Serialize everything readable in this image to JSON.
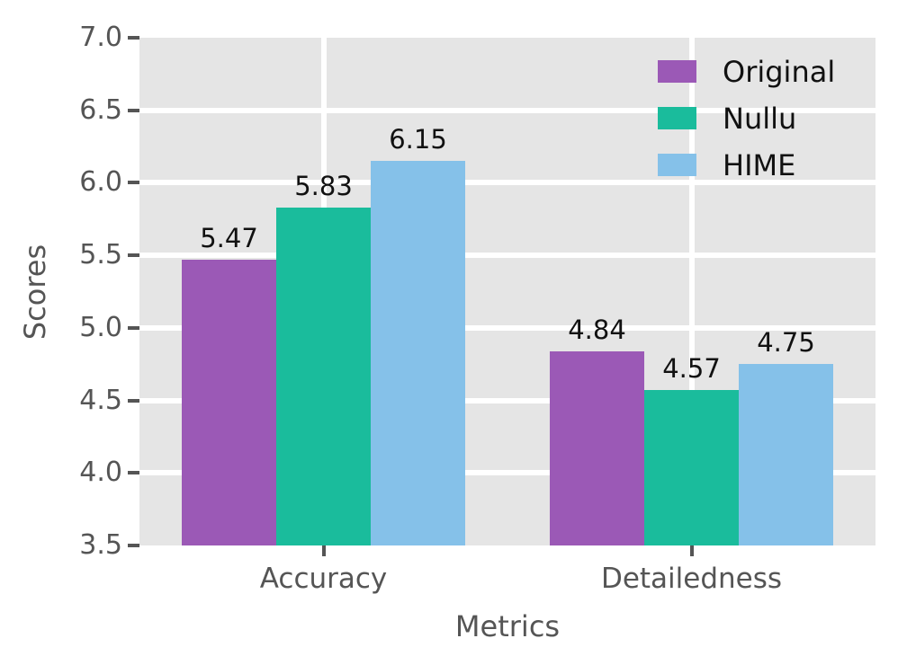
{
  "chart_data": {
    "type": "bar",
    "title": "",
    "xlabel": "Metrics",
    "ylabel": "Scores",
    "categories": [
      "Accuracy",
      "Detailedness"
    ],
    "series": [
      {
        "name": "Original",
        "color": "#9b59b6",
        "values": [
          5.47,
          4.84
        ]
      },
      {
        "name": "Nullu",
        "color": "#1abc9c",
        "values": [
          5.83,
          4.57
        ]
      },
      {
        "name": "HIME",
        "color": "#85c1e9",
        "values": [
          6.15,
          4.75
        ]
      }
    ],
    "value_labels": [
      [
        "5.47",
        "4.84"
      ],
      [
        "5.83",
        "4.57"
      ],
      [
        "6.15",
        "4.75"
      ]
    ],
    "ylim": [
      3.5,
      7.0
    ],
    "yticks": [
      3.5,
      4.0,
      4.5,
      5.0,
      5.5,
      6.0,
      6.5,
      7.0
    ],
    "ytick_labels": [
      "3.5",
      "4.0",
      "4.5",
      "5.0",
      "5.5",
      "6.0",
      "6.5",
      "7.0"
    ],
    "grid": true,
    "legend_position": "upper right"
  },
  "style": {
    "plot_bg": "#e5e5e5",
    "grid_color": "#ffffff",
    "tick_text_color": "#555555",
    "value_label_color": "#111111",
    "figure_bg": "#ffffff"
  }
}
